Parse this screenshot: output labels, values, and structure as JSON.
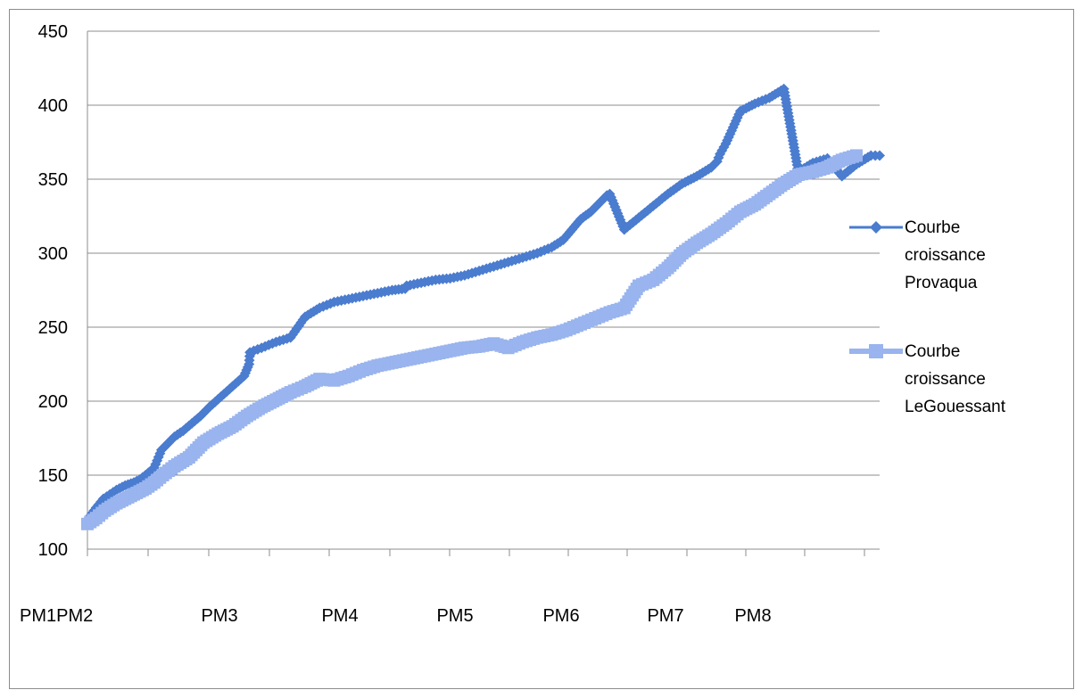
{
  "chart_data": {
    "type": "line",
    "title": "",
    "xlabel": "",
    "ylabel": "",
    "ylim": [
      100,
      450
    ],
    "yticks": [
      100,
      150,
      200,
      250,
      300,
      350,
      400,
      450
    ],
    "x_tick_labels": [
      "PM1PM2",
      "PM3",
      "PM4",
      "PM5",
      "PM6",
      "PM7",
      "PM8"
    ],
    "grid": "horizontal",
    "legend_position": "right",
    "series": [
      {
        "name": "Courbe croissance Provaqua",
        "name_lines": [
          "Courbe",
          "croissance",
          "Provaqua"
        ],
        "color": "#4a7ccf",
        "marker": "diamond",
        "x": [
          0,
          0.3,
          0.55,
          1,
          1.3,
          1.6,
          1.8,
          2,
          2.3,
          2.55,
          2.8,
          3,
          3.3,
          3.6,
          3.9,
          4.2,
          4.6,
          5,
          5.4,
          5.57,
          5.6,
          6,
          6.5,
          7,
          7.5,
          8,
          8.5,
          9,
          9.5,
          10,
          10.5,
          10.95,
          11,
          11.5,
          12,
          12.5,
          13,
          13.5,
          14,
          14.5,
          15,
          15.5,
          16,
          16.4,
          16.7,
          17,
          17.35,
          17.6,
          17.9,
          18,
          18.5,
          19,
          19.5,
          20,
          20.5,
          21,
          21.5,
          21.7,
          21.8,
          22,
          22.5,
          23,
          23.5,
          24,
          24.5,
          25,
          25.5,
          26,
          26.5,
          27,
          27.3
        ],
        "y": [
          120,
          128,
          134,
          140,
          143,
          145,
          147,
          150,
          155,
          167,
          172,
          176,
          180,
          185,
          190,
          196,
          203,
          210,
          217,
          225,
          233,
          236,
          240,
          243,
          257,
          263,
          267,
          269,
          271,
          273,
          275,
          276,
          278,
          280,
          282,
          283,
          285,
          288,
          291,
          294,
          297,
          300,
          304,
          309,
          316,
          323,
          328,
          333,
          339,
          340,
          316,
          324,
          332,
          340,
          347,
          352,
          358,
          362,
          367,
          374,
          396,
          401,
          405,
          411,
          355,
          361,
          364,
          352,
          360,
          366,
          366
        ]
      },
      {
        "name": "Courbe croissance LeGouessant",
        "name_lines": [
          "Courbe",
          "croissance",
          "LeGouessant"
        ],
        "color": "#99b4ee",
        "marker": "square",
        "x": [
          0,
          0.3,
          0.6,
          1,
          1.5,
          2,
          2.3,
          2.6,
          3,
          3.5,
          4,
          4.5,
          5,
          5.5,
          6,
          6.5,
          7,
          7.5,
          7.8,
          8,
          8.5,
          9,
          9.5,
          10,
          10.5,
          11,
          11.5,
          12,
          12.5,
          13,
          13.5,
          14,
          14.5,
          15,
          15.5,
          16,
          16.5,
          17,
          17.5,
          18,
          18.5,
          19,
          19.5,
          20,
          20.5,
          21,
          21.5,
          22,
          22.5,
          23,
          23.5,
          24,
          24.5,
          25,
          25.5,
          26,
          26.5,
          27,
          27.3
        ],
        "y": [
          117,
          121,
          126,
          131,
          136,
          141,
          145,
          150,
          156,
          162,
          172,
          178,
          183,
          190,
          196,
          201,
          206,
          210,
          213,
          215,
          214,
          217,
          221,
          224,
          226,
          228,
          230,
          232,
          234,
          236,
          237,
          239,
          236,
          240,
          243,
          245,
          248,
          252,
          256,
          260,
          263,
          278,
          282,
          290,
          300,
          307,
          313,
          320,
          328,
          333,
          340,
          347,
          353,
          355,
          358,
          363,
          366,
          null,
          null
        ]
      }
    ]
  }
}
